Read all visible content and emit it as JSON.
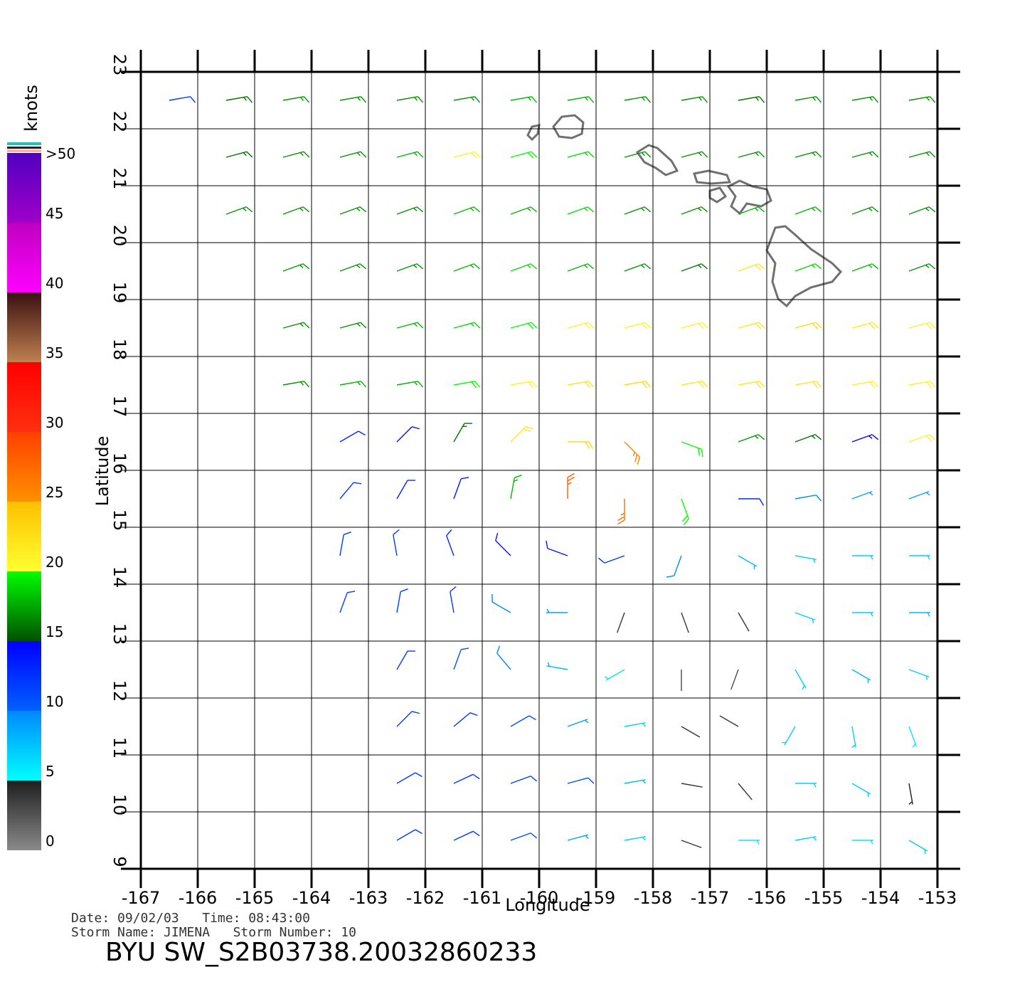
{
  "map": {
    "axes": {
      "xlabel": "Longitude",
      "ylabel": "Latitude",
      "xlim": [
        -167,
        -153
      ],
      "ylim": [
        9,
        23
      ],
      "xticks": [
        -167,
        -166,
        -165,
        -164,
        -163,
        -162,
        -161,
        -160,
        -159,
        -158,
        -157,
        -156,
        -155,
        -154,
        -153
      ],
      "yticks": [
        9,
        10,
        11,
        12,
        13,
        14,
        15,
        16,
        17,
        18,
        19,
        20,
        21,
        22,
        23
      ],
      "grid": true
    },
    "colorbar": {
      "title": "knots",
      "lim": [
        0,
        50
      ],
      "ticks": [
        0,
        5,
        10,
        15,
        20,
        25,
        30,
        35,
        40,
        45,
        {
          "value": 50,
          "label": ">50"
        }
      ],
      "colors": [
        [
          "#8a8a8a",
          "#1e1e1e"
        ],
        [
          "#00ffff",
          "#0088ff"
        ],
        [
          "#0060ff",
          "#0000ff"
        ],
        [
          "#005000",
          "#00ff00"
        ],
        [
          "#ffff30",
          "#ffc000"
        ],
        [
          "#ff9000",
          "#ff4000"
        ],
        [
          "#ff3010",
          "#ff0000"
        ],
        [
          "#c08050",
          "#3a1010"
        ],
        [
          "#ff00ff",
          "#c000c0"
        ],
        [
          "#a000c8",
          "#5000c0"
        ]
      ]
    },
    "wind": {
      "lons": [
        -166.5,
        -165.5,
        -164.5,
        -163.5,
        -162.5,
        -161.5,
        -160.5,
        -159.5,
        -158.5,
        -157.5,
        -156.5,
        -155.5,
        -154.5,
        -153.5
      ],
      "lats": [
        22.5,
        21.5,
        20.5,
        19.5,
        18.5,
        17.5,
        16.5,
        15.5,
        14.5,
        13.5,
        12.5,
        11.5,
        10.5,
        9.5
      ],
      "speed": [
        [
          12,
          16,
          17,
          17,
          17,
          17,
          18,
          18,
          17,
          17,
          16,
          17,
          17,
          17
        ],
        [
          null,
          16,
          17,
          17,
          18,
          21,
          20,
          19,
          17,
          17,
          17,
          17,
          17,
          17
        ],
        [
          null,
          17,
          17,
          17,
          17,
          18,
          18,
          19,
          17,
          17,
          18,
          18,
          17,
          17
        ],
        [
          null,
          null,
          17,
          17,
          17,
          18,
          19,
          18,
          17,
          16,
          22,
          19,
          18,
          17
        ],
        [
          null,
          null,
          17,
          17,
          18,
          19,
          20,
          21,
          21,
          21,
          22,
          23,
          22,
          21
        ],
        [
          null,
          null,
          17,
          18,
          18,
          20,
          21,
          22,
          23,
          22,
          22,
          22,
          21,
          21
        ],
        [
          null,
          null,
          null,
          13,
          14,
          16,
          22,
          23,
          26,
          20,
          17,
          16,
          15,
          21
        ],
        [
          null,
          null,
          null,
          12,
          13,
          14,
          18,
          28,
          27,
          20,
          13,
          10,
          9,
          9
        ],
        [
          null,
          null,
          null,
          12,
          12,
          13,
          14,
          14,
          12,
          10,
          8,
          7,
          7,
          7
        ],
        [
          null,
          null,
          null,
          12,
          12,
          12,
          10,
          9,
          4,
          4,
          4,
          7,
          7,
          8
        ],
        [
          null,
          null,
          null,
          null,
          12,
          11,
          10,
          8,
          6,
          3,
          3,
          7,
          8,
          7
        ],
        [
          null,
          null,
          null,
          null,
          12,
          12,
          11,
          9,
          7,
          4,
          4,
          7,
          7,
          6
        ],
        [
          null,
          null,
          null,
          null,
          12,
          12,
          12,
          11,
          8,
          4,
          4,
          7,
          7,
          5
        ],
        [
          null,
          null,
          null,
          null,
          12,
          12,
          11,
          9,
          7,
          4,
          6,
          7,
          6,
          7
        ]
      ],
      "direction": [
        [
          80,
          80,
          80,
          80,
          80,
          80,
          80,
          80,
          80,
          80,
          80,
          80,
          80,
          80
        ],
        [
          null,
          75,
          75,
          75,
          75,
          75,
          75,
          75,
          75,
          75,
          75,
          75,
          75,
          75
        ],
        [
          null,
          70,
          70,
          70,
          70,
          70,
          70,
          70,
          70,
          70,
          70,
          70,
          70,
          70
        ],
        [
          null,
          null,
          70,
          70,
          70,
          70,
          70,
          70,
          70,
          70,
          70,
          70,
          70,
          70
        ],
        [
          null,
          null,
          75,
          75,
          75,
          75,
          75,
          75,
          75,
          75,
          75,
          75,
          75,
          75
        ],
        [
          null,
          null,
          80,
          80,
          80,
          80,
          80,
          80,
          80,
          80,
          80,
          80,
          80,
          80
        ],
        [
          null,
          null,
          null,
          60,
          45,
          30,
          45,
          90,
          135,
          110,
          70,
          70,
          70,
          70
        ],
        [
          null,
          null,
          null,
          40,
          30,
          20,
          10,
          0,
          180,
          160,
          90,
          80,
          70,
          70
        ],
        [
          null,
          null,
          null,
          10,
          350,
          340,
          315,
          290,
          250,
          200,
          120,
          100,
          90,
          90
        ],
        [
          null,
          null,
          null,
          20,
          10,
          350,
          300,
          270,
          200,
          160,
          150,
          110,
          90,
          90
        ],
        [
          null,
          null,
          null,
          null,
          30,
          20,
          320,
          280,
          240,
          180,
          200,
          150,
          120,
          110
        ],
        [
          null,
          null,
          null,
          null,
          45,
          50,
          60,
          70,
          80,
          120,
          300,
          210,
          170,
          160
        ],
        [
          null,
          null,
          null,
          null,
          60,
          65,
          70,
          75,
          80,
          100,
          140,
          90,
          120,
          170
        ],
        [
          null,
          null,
          null,
          null,
          60,
          65,
          70,
          75,
          80,
          110,
          90,
          80,
          90,
          120
        ]
      ]
    },
    "footer": {
      "line1": "Date: 09/02/03   Time: 08:43:00",
      "line2": "Storm Name: JIMENA   Storm Number: 10",
      "title": "BYU  SW_S2B03738.20032860233"
    }
  }
}
